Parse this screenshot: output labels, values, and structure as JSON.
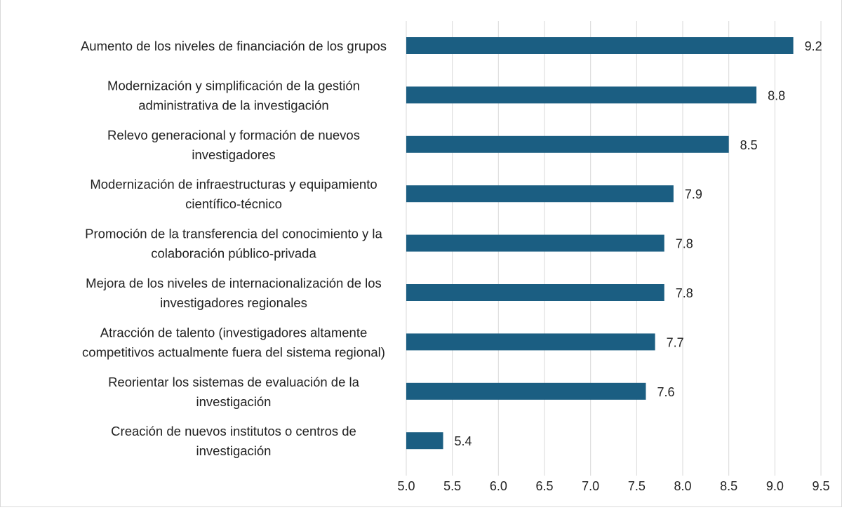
{
  "chart_data": {
    "type": "bar",
    "orientation": "horizontal",
    "categories": [
      [
        "Aumento de los niveles de financiación de los grupos"
      ],
      [
        "Modernización y simplificación de la gestión",
        "administrativa de la investigación"
      ],
      [
        "Relevo generacional y formación de nuevos",
        "investigadores"
      ],
      [
        "Modernización de infraestructuras y equipamiento",
        "científico-técnico"
      ],
      [
        "Promoción de la transferencia del conocimiento y la",
        "colaboración público-privada"
      ],
      [
        "Mejora de los niveles de internacionalización de los",
        "investigadores regionales"
      ],
      [
        "Atracción de talento (investigadores altamente",
        "competitivos actualmente fuera del sistema regional)"
      ],
      [
        "Reorientar los sistemas de evaluación de la",
        "investigación"
      ],
      [
        "Creación de nuevos institutos o centros de",
        "investigación"
      ]
    ],
    "values": [
      9.2,
      8.8,
      8.5,
      7.9,
      7.8,
      7.8,
      7.7,
      7.6,
      5.4
    ],
    "data_labels": [
      "9.2",
      "8.8",
      "8.5",
      "7.9",
      "7.8",
      "7.8",
      "7.7",
      "7.6",
      "5.4"
    ],
    "xlim": [
      5.0,
      9.5
    ],
    "xticks": [
      "5.0",
      "5.5",
      "6.0",
      "6.5",
      "7.0",
      "7.5",
      "8.0",
      "8.5",
      "9.0",
      "9.5"
    ],
    "grid": "vertical",
    "bar_color": "#1b5e82",
    "grid_color": "#d9d9d9",
    "title": "",
    "xlabel": "",
    "ylabel": ""
  }
}
